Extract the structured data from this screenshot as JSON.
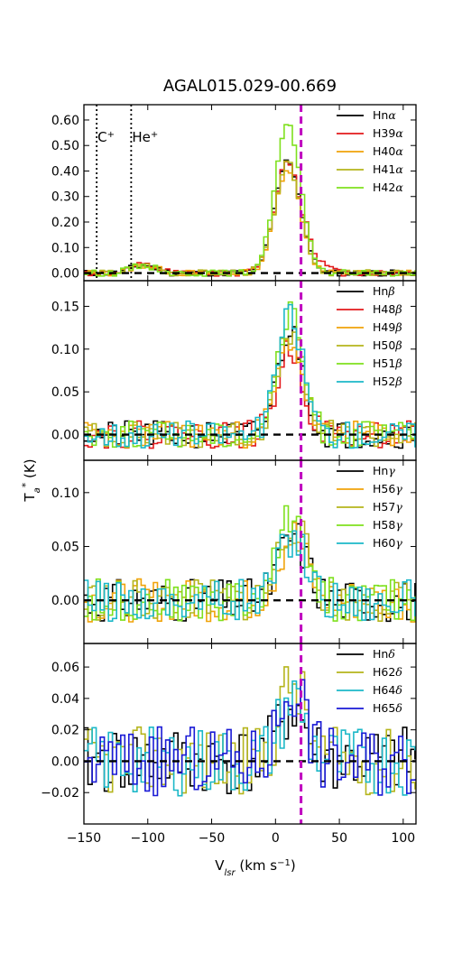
{
  "chart_data": {
    "type": "line",
    "title": "AGAL015.029-00.669",
    "xlabel": "V",
    "xlabel_sub": "lsr",
    "xlabel_rest": " (km s",
    "xlabel_sup": "−1",
    "xlabel_end": ")",
    "ylabel": "T",
    "ylabel_sub": "a",
    "ylabel_sup": "*",
    "ylabel_end": " (K)",
    "xlim": [
      -150,
      110
    ],
    "xticks": [
      -150,
      -100,
      -50,
      0,
      50,
      100
    ],
    "xtick_labels": [
      "−150",
      "−100",
      "−50",
      "0",
      "50",
      "100"
    ],
    "vline_magenta": 20,
    "vline_magenta_color": "#bf00bf",
    "dotted_lines": [
      -140,
      -113
    ],
    "annotations": [
      {
        "x": -140,
        "base": "C",
        "sup": "+"
      },
      {
        "x": -113,
        "base": "He",
        "sup": "+"
      }
    ],
    "panels": [
      {
        "ylim": [
          -0.03,
          0.66
        ],
        "yticks": [
          0.0,
          0.1,
          0.2,
          0.3,
          0.4,
          0.5,
          0.6
        ],
        "ytick_labels": [
          "0.00",
          "0.10",
          "0.20",
          "0.30",
          "0.40",
          "0.50",
          "0.60"
        ],
        "peak_center": 8,
        "peak_width": 10,
        "noise": 0.012,
        "series": [
          {
            "name": "Hn",
            "greek": "α",
            "color": "#000000",
            "amp": 0.44,
            "seed": 11
          },
          {
            "name": "H39",
            "greek": "α",
            "color": "#e31a1c",
            "amp": 0.44,
            "seed": 12,
            "wing": 0.06
          },
          {
            "name": "H40",
            "greek": "α",
            "color": "#f0a30a",
            "amp": 0.41,
            "seed": 13
          },
          {
            "name": "H41",
            "greek": "α",
            "color": "#b5b51c",
            "amp": 0.43,
            "seed": 14
          },
          {
            "name": "H42",
            "greek": "α",
            "color": "#7fe01e",
            "amp": 0.58,
            "seed": 15
          }
        ]
      },
      {
        "ylim": [
          -0.03,
          0.18
        ],
        "yticks": [
          0.0,
          0.05,
          0.1,
          0.15
        ],
        "ytick_labels": [
          "0.00",
          "0.05",
          "0.10",
          "0.15"
        ],
        "peak_center": 10,
        "peak_width": 10,
        "noise": 0.016,
        "series": [
          {
            "name": "Hn",
            "greek": "β",
            "color": "#000000",
            "amp": 0.12,
            "seed": 21
          },
          {
            "name": "H48",
            "greek": "β",
            "color": "#e31a1c",
            "amp": 0.1,
            "seed": 22
          },
          {
            "name": "H49",
            "greek": "β",
            "color": "#f0a30a",
            "amp": 0.11,
            "seed": 23
          },
          {
            "name": "H50",
            "greek": "β",
            "color": "#b5b51c",
            "amp": 0.12,
            "seed": 24
          },
          {
            "name": "H51",
            "greek": "β",
            "color": "#7fe01e",
            "amp": 0.14,
            "seed": 25
          },
          {
            "name": "H52",
            "greek": "β",
            "color": "#1cb8c8",
            "amp": 0.14,
            "seed": 26
          }
        ]
      },
      {
        "ylim": [
          -0.04,
          0.13
        ],
        "yticks": [
          0.0,
          0.05,
          0.1
        ],
        "ytick_labels": [
          "0.00",
          "0.05",
          "0.10"
        ],
        "peak_center": 12,
        "peak_width": 11,
        "noise": 0.02,
        "series": [
          {
            "name": "Hn",
            "greek": "γ",
            "color": "#000000",
            "amp": 0.06,
            "seed": 31
          },
          {
            "name": "H56",
            "greek": "γ",
            "color": "#f0a30a",
            "amp": 0.06,
            "seed": 32
          },
          {
            "name": "H57",
            "greek": "γ",
            "color": "#b5b51c",
            "amp": 0.07,
            "seed": 33
          },
          {
            "name": "H58",
            "greek": "γ",
            "color": "#7fe01e",
            "amp": 0.08,
            "seed": 34
          },
          {
            "name": "H60",
            "greek": "γ",
            "color": "#1cb8c8",
            "amp": 0.06,
            "seed": 35
          }
        ]
      },
      {
        "ylim": [
          -0.04,
          0.075
        ],
        "yticks": [
          -0.02,
          0.0,
          0.02,
          0.04,
          0.06
        ],
        "ytick_labels": [
          "−0.02",
          "0.00",
          "0.02",
          "0.04",
          "0.06"
        ],
        "peak_center": 12,
        "peak_width": 10,
        "noise": 0.022,
        "series": [
          {
            "name": "Hn",
            "greek": "δ",
            "color": "#000000",
            "amp": 0.035,
            "seed": 41
          },
          {
            "name": "H62",
            "greek": "δ",
            "color": "#b5b51c",
            "amp": 0.05,
            "seed": 42
          },
          {
            "name": "H64",
            "greek": "δ",
            "color": "#1cb8c8",
            "amp": 0.04,
            "seed": 43
          },
          {
            "name": "H65",
            "greek": "δ",
            "color": "#1a1ad6",
            "amp": 0.05,
            "seed": 44
          }
        ]
      }
    ]
  }
}
